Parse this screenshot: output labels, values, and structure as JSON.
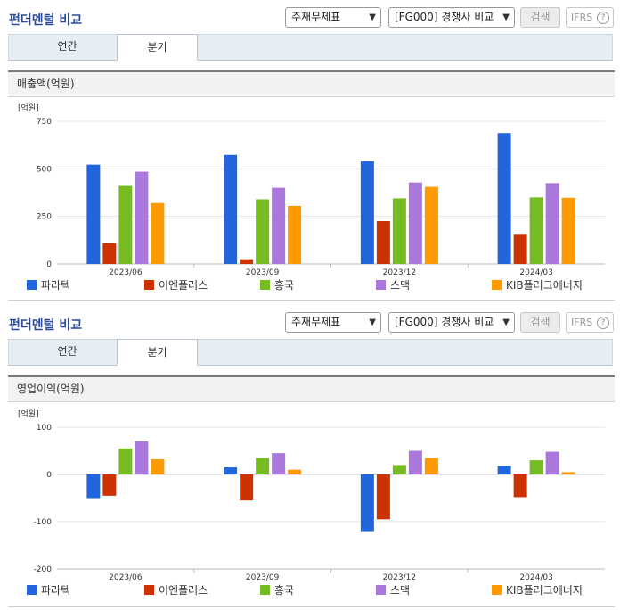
{
  "panels": [
    {
      "title": "펀더멘털 비교",
      "select_statement": "주재무제표",
      "select_compare": "[FG000] 경쟁사 비교",
      "search_label": "검색",
      "ifrs_label": "IFRS",
      "ifrs_help": "?",
      "tabs": [
        "연간",
        "분기"
      ],
      "active_tab": 1,
      "section_title": "매출액(억원)"
    },
    {
      "title": "펀더멘털 비교",
      "select_statement": "주재무제표",
      "select_compare": "[FG000] 경쟁사 비교",
      "search_label": "검색",
      "ifrs_label": "IFRS",
      "ifrs_help": "?",
      "tabs": [
        "연간",
        "분기"
      ],
      "active_tab": 1,
      "section_title": "영업이익(억원)"
    }
  ],
  "colors": [
    "#2266dd",
    "#cc3300",
    "#77bb22",
    "#aa77dd",
    "#ff9900"
  ],
  "chart_data": [
    {
      "type": "bar",
      "unit_label": "[억원]",
      "categories": [
        "2023/06",
        "2023/09",
        "2023/12",
        "2024/03"
      ],
      "series": [
        {
          "name": "파라텍",
          "values": [
            522,
            573,
            540,
            688
          ]
        },
        {
          "name": "이엔플러스",
          "values": [
            110,
            25,
            225,
            158
          ]
        },
        {
          "name": "흥국",
          "values": [
            410,
            340,
            345,
            350
          ]
        },
        {
          "name": "스맥",
          "values": [
            485,
            400,
            428,
            425
          ]
        },
        {
          "name": "KIB플러그에너지",
          "values": [
            320,
            305,
            405,
            348
          ]
        }
      ],
      "ylim": [
        0,
        750
      ],
      "yticks": [
        0,
        250,
        500,
        750
      ],
      "grid": true,
      "legend": "bottom"
    },
    {
      "type": "bar",
      "unit_label": "[억원]",
      "categories": [
        "2023/06",
        "2023/09",
        "2023/12",
        "2024/03"
      ],
      "series": [
        {
          "name": "파라텍",
          "values": [
            -50,
            15,
            -120,
            18
          ]
        },
        {
          "name": "이엔플러스",
          "values": [
            -45,
            -55,
            -95,
            -48
          ]
        },
        {
          "name": "흥국",
          "values": [
            55,
            35,
            20,
            30
          ]
        },
        {
          "name": "스맥",
          "values": [
            70,
            45,
            50,
            48
          ]
        },
        {
          "name": "KIB플러그에너지",
          "values": [
            32,
            10,
            35,
            5
          ]
        }
      ],
      "ylim": [
        -200,
        100
      ],
      "yticks": [
        -200,
        -100,
        0,
        100
      ],
      "grid": true,
      "legend": "bottom"
    }
  ]
}
